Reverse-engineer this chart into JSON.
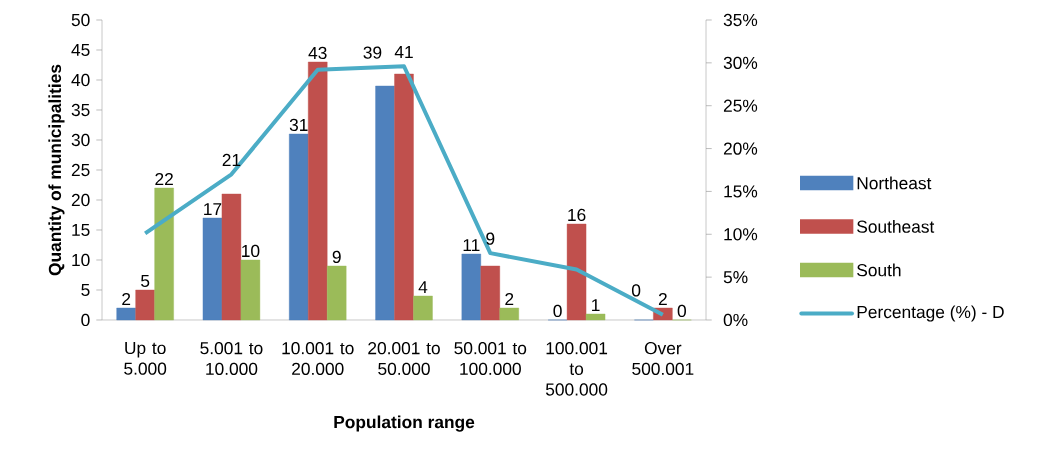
{
  "chart_data": {
    "type": "bar",
    "xlabel": "Population range",
    "ylabel": "Quantity of municipalities",
    "categories": [
      "Up to 5.000",
      "5.001 to 10.000",
      "10.001 to 20.000",
      "20.001 to 50.000",
      "50.001 to 100.000",
      "100.001 to 500.000",
      "Over 500.001"
    ],
    "series": [
      {
        "name": "Northeast",
        "color": "#4f81bd",
        "values": [
          2,
          17,
          31,
          39,
          11,
          0,
          0
        ],
        "value_labels": [
          "2",
          "17",
          "31",
          "39",
          "11",
          "0",
          "0"
        ]
      },
      {
        "name": "Southeast",
        "color": "#c0504d",
        "values": [
          5,
          21,
          43,
          41,
          9,
          16,
          2
        ],
        "value_labels": [
          "5",
          "21",
          "43",
          "41",
          "9",
          "16",
          "2"
        ]
      },
      {
        "name": "South",
        "color": "#9bbb59",
        "values": [
          22,
          10,
          9,
          4,
          2,
          1,
          0
        ],
        "value_labels": [
          "22",
          "10",
          "9",
          "4",
          "2",
          "1",
          "0"
        ]
      },
      {
        "name": "Percentage (%) - D",
        "type": "line",
        "axis": "y2",
        "color": "#4bacc6",
        "values": [
          10.1,
          17.0,
          29.2,
          29.6,
          7.8,
          5.9,
          0.6
        ]
      }
    ],
    "ylim": [
      0,
      50
    ],
    "yticks": [
      0,
      5,
      10,
      15,
      20,
      25,
      30,
      35,
      40,
      45,
      50
    ],
    "y2lim": [
      0,
      35
    ],
    "y2ticks": [
      {
        "value": 0,
        "label": "0%"
      },
      {
        "value": 5,
        "label": "5%"
      },
      {
        "value": 10,
        "label": "10%"
      },
      {
        "value": 15,
        "label": "15%"
      },
      {
        "value": 20,
        "label": "20%"
      },
      {
        "value": 25,
        "label": "25%"
      },
      {
        "value": 30,
        "label": "30%"
      },
      {
        "value": 35,
        "label": "35%"
      }
    ],
    "grid": false,
    "legend": "right"
  }
}
